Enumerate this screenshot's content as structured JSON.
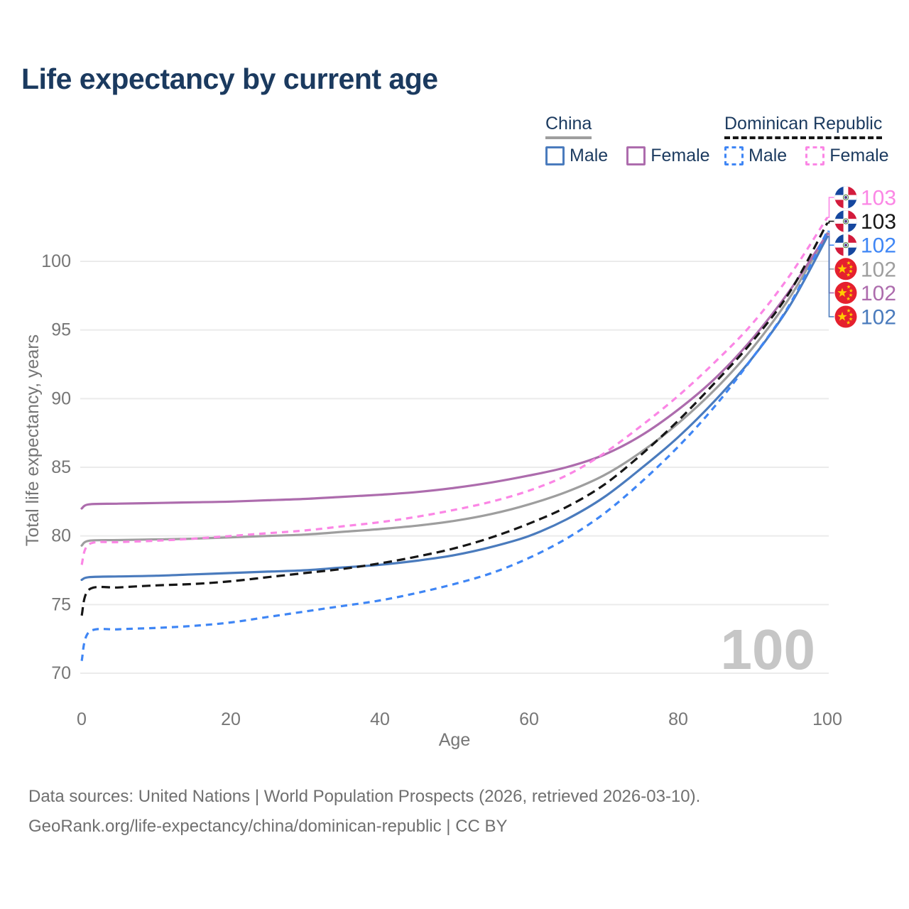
{
  "title": "Life expectancy by current age",
  "legend": {
    "china": {
      "title": "China",
      "male_label": "Male",
      "female_label": "Female"
    },
    "dominican_republic": {
      "title": "Dominican Republic",
      "male_label": "Male",
      "female_label": "Female"
    }
  },
  "colors": {
    "china_male": "#4a7bbd",
    "china_female": "#ad6cad",
    "china_total": "#9e9e9e",
    "dr_male": "#3f86f5",
    "dr_female": "#fb86e5",
    "dr_total": "#161616",
    "title_text": "#1b3a5f",
    "axis_text": "#767676",
    "grid": "#ebebeb",
    "watermark": "#c6c6c6",
    "flag_china_red": "#e5202e",
    "flag_china_yellow": "#ffcd00",
    "flag_do_blue": "#16479f",
    "flag_do_red": "#d31b3c"
  },
  "chart_data": {
    "type": "line",
    "title": "Life expectancy by current age",
    "xlabel": "Age",
    "ylabel": "Total life expectancy, years",
    "xlim": [
      0,
      100
    ],
    "ylim": [
      70,
      103.5
    ],
    "xticks": [
      0,
      20,
      40,
      60,
      80,
      100
    ],
    "yticks": [
      70,
      75,
      80,
      85,
      90,
      95,
      100
    ],
    "grid": "horizontal",
    "legend_position": "top-right",
    "watermark": "100",
    "x": [
      0,
      1,
      5,
      10,
      15,
      20,
      25,
      30,
      35,
      40,
      45,
      50,
      55,
      60,
      65,
      70,
      75,
      80,
      85,
      90,
      95,
      100
    ],
    "series": [
      {
        "id": "china-total",
        "name": "China",
        "country": "China",
        "sex": "Both",
        "style": "solid",
        "color": "#9e9e9e",
        "flag": "china",
        "end_label": "102",
        "values": [
          79.3,
          79.65,
          79.7,
          79.75,
          79.8,
          79.9,
          80.0,
          80.1,
          80.3,
          80.5,
          80.75,
          81.1,
          81.6,
          82.3,
          83.2,
          84.4,
          86.1,
          88.2,
          90.7,
          93.7,
          97.4,
          102.05
        ]
      },
      {
        "id": "china-female",
        "name": "China Female",
        "country": "China",
        "sex": "Female",
        "style": "solid",
        "color": "#ad6cad",
        "flag": "china",
        "end_label": "102",
        "values": [
          82.0,
          82.3,
          82.35,
          82.4,
          82.45,
          82.5,
          82.6,
          82.7,
          82.85,
          83.0,
          83.2,
          83.5,
          83.9,
          84.4,
          85.0,
          85.9,
          87.3,
          89.2,
          91.5,
          94.4,
          97.9,
          102.0
        ]
      },
      {
        "id": "china-male",
        "name": "China Male",
        "country": "China",
        "sex": "Male",
        "style": "solid",
        "color": "#4a7bbd",
        "flag": "china",
        "end_label": "102",
        "values": [
          76.8,
          77.0,
          77.05,
          77.1,
          77.2,
          77.3,
          77.4,
          77.5,
          77.7,
          77.9,
          78.2,
          78.6,
          79.2,
          80.0,
          81.2,
          82.8,
          84.9,
          87.2,
          89.9,
          93.0,
          96.8,
          101.8
        ]
      },
      {
        "id": "dr-total",
        "name": "Dominican Republic",
        "country": "Dominican Republic",
        "sex": "Both",
        "style": "dashed",
        "color": "#161616",
        "flag": "do",
        "end_label": "103",
        "values": [
          74.2,
          76.1,
          76.25,
          76.4,
          76.5,
          76.7,
          77.0,
          77.3,
          77.6,
          78.0,
          78.5,
          79.1,
          79.9,
          80.9,
          82.1,
          83.7,
          85.9,
          88.4,
          91.2,
          94.2,
          97.8,
          102.8
        ]
      },
      {
        "id": "dr-female",
        "name": "Dominican Republic Female",
        "country": "Dominican Republic",
        "sex": "Female",
        "style": "dashed",
        "color": "#fb86e5",
        "flag": "do",
        "end_label": "103",
        "values": [
          77.9,
          79.4,
          79.55,
          79.65,
          79.8,
          80.0,
          80.2,
          80.4,
          80.7,
          81.0,
          81.4,
          81.9,
          82.5,
          83.3,
          84.4,
          86.0,
          88.0,
          90.2,
          92.7,
          95.5,
          99.0,
          103.2
        ]
      },
      {
        "id": "dr-male",
        "name": "Dominican Republic Male",
        "country": "Dominican Republic",
        "sex": "Male",
        "style": "dashed",
        "color": "#3f86f5",
        "flag": "do",
        "end_label": "102",
        "values": [
          70.9,
          73.0,
          73.2,
          73.3,
          73.45,
          73.7,
          74.1,
          74.5,
          74.9,
          75.3,
          75.85,
          76.5,
          77.3,
          78.4,
          79.8,
          81.6,
          83.9,
          86.5,
          89.5,
          93.0,
          96.9,
          102.2
        ]
      }
    ]
  },
  "footer": {
    "line1": "Data sources: United Nations | World Population Prospects (2026, retrieved 2026-03-10).",
    "line2": "GeoRank.org/life-expectancy/china/dominican-republic | CC BY"
  }
}
